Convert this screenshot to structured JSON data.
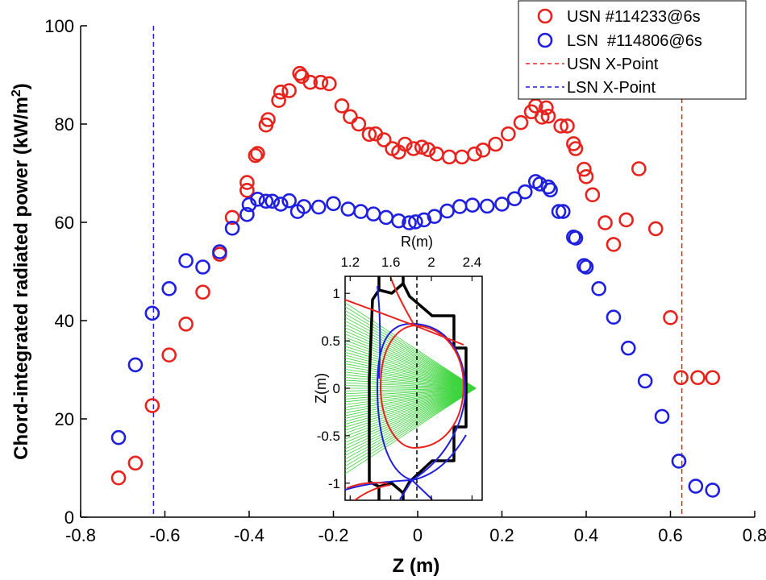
{
  "chart_data": {
    "type": "scatter",
    "title": "",
    "xlabel": "Z (m)",
    "ylabel": "Chord-integrated radiated power",
    "ylabel_unit": "(kW/m",
    "ylabel_unit_sup": "2",
    "ylabel_unit_close": ")",
    "xlim": [
      -0.8,
      0.8
    ],
    "ylim": [
      0,
      100
    ],
    "xticks": [
      "-0.8",
      "-0.6",
      "-0.4",
      "-0.2",
      "0",
      "0.2",
      "0.4",
      "0.6",
      "0.8"
    ],
    "yticks": [
      "0",
      "20",
      "40",
      "60",
      "80",
      "100"
    ],
    "grid": false,
    "legend_position": "top-right",
    "series": [
      {
        "name": "USN #114233@6s",
        "color": "#e8231d",
        "marker": "circle",
        "x": [
          -0.71,
          -0.67,
          -0.63,
          -0.59,
          -0.55,
          -0.51,
          -0.47,
          -0.44,
          -0.405,
          -0.405,
          -0.385,
          -0.38,
          -0.36,
          -0.355,
          -0.33,
          -0.325,
          -0.305,
          -0.28,
          -0.275,
          -0.255,
          -0.23,
          -0.21,
          -0.18,
          -0.16,
          -0.14,
          -0.115,
          -0.1,
          -0.08,
          -0.06,
          -0.045,
          -0.03,
          -0.01,
          0.01,
          0.025,
          0.045,
          0.075,
          0.105,
          0.135,
          0.155,
          0.185,
          0.215,
          0.245,
          0.27,
          0.28,
          0.295,
          0.305,
          0.31,
          0.34,
          0.355,
          0.37,
          0.375,
          0.395,
          0.4,
          0.415,
          0.445,
          0.465,
          0.495,
          0.525,
          0.565,
          0.6,
          0.625,
          0.665,
          0.7
        ],
        "y": [
          8,
          11,
          22.7,
          33,
          39.3,
          45.8,
          53.5,
          61,
          66.5,
          68.1,
          73.6,
          74,
          79.8,
          80.9,
          84.8,
          86.5,
          86.8,
          90.3,
          89.7,
          88.5,
          88.5,
          88.2,
          83.7,
          81.5,
          80,
          77.9,
          78,
          76.8,
          75,
          74.3,
          75.9,
          75,
          75.3,
          74.8,
          73.9,
          73.3,
          73.3,
          73.9,
          74.7,
          75.9,
          78,
          80.3,
          82.5,
          83.7,
          81.4,
          83.3,
          81.6,
          79.6,
          79.6,
          76,
          75,
          70.8,
          69.3,
          65.6,
          59.9,
          55.5,
          60.5,
          70.9,
          58.7,
          40.6,
          28.4,
          28.4,
          28.4
        ],
        "y_note": "approximate readings"
      },
      {
        "name": "LSN  #114806@6s",
        "color": "#1f1fe0",
        "marker": "circle",
        "x": [
          -0.71,
          -0.67,
          -0.63,
          -0.59,
          -0.55,
          -0.51,
          -0.47,
          -0.44,
          -0.405,
          -0.4,
          -0.38,
          -0.36,
          -0.345,
          -0.325,
          -0.305,
          -0.285,
          -0.27,
          -0.235,
          -0.2,
          -0.165,
          -0.135,
          -0.105,
          -0.075,
          -0.045,
          -0.02,
          -0.005,
          0.015,
          0.04,
          0.07,
          0.1,
          0.13,
          0.165,
          0.2,
          0.23,
          0.255,
          0.28,
          0.29,
          0.31,
          0.315,
          0.335,
          0.345,
          0.37,
          0.375,
          0.395,
          0.4,
          0.43,
          0.465,
          0.5,
          0.54,
          0.58,
          0.62,
          0.66,
          0.7
        ],
        "y": [
          16.2,
          31,
          41.5,
          46.5,
          52.2,
          50.9,
          54,
          58.8,
          61.6,
          63.6,
          64.7,
          64.3,
          64.3,
          63.7,
          64.4,
          62.2,
          63.2,
          63.1,
          63.8,
          62.7,
          62.2,
          61.7,
          61,
          60.3,
          59.9,
          60.1,
          60.5,
          61.2,
          62.3,
          63.2,
          63.5,
          63.3,
          63.7,
          64.8,
          66.2,
          68.3,
          67.8,
          67.2,
          66.6,
          62.2,
          62.2,
          57,
          56.8,
          51.2,
          50.9,
          46.5,
          40.7,
          34.4,
          27.7,
          20.5,
          11.4,
          6.3,
          5.5
        ]
      }
    ],
    "reference_lines": [
      {
        "name": "USN X-Point",
        "color": "#e8231d",
        "style": "dashed",
        "x": 0.627
      },
      {
        "name": "LSN X-Point",
        "color": "#1f1fe0",
        "style": "dashed",
        "x": -0.627
      }
    ],
    "inset": {
      "xlabel": "R(m)",
      "ylabel": "Z(m)",
      "xticks": [
        "1.2",
        "1.6",
        "2",
        "2.4"
      ],
      "yticks": [
        "1",
        "0.5",
        "0",
        "-0.5",
        "-1"
      ],
      "xlim": [
        1.15,
        2.5
      ],
      "ylim": [
        -1.18,
        1.18
      ]
    }
  }
}
